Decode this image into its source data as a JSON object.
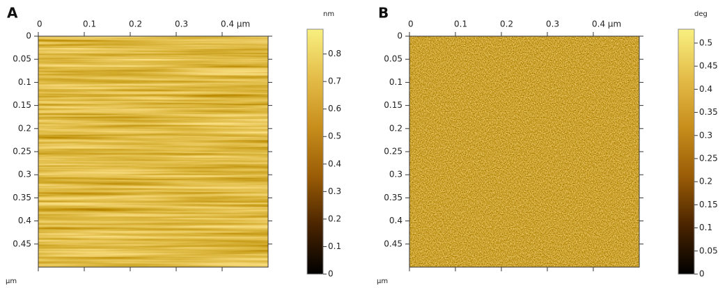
{
  "chart_data": [
    {
      "type": "heatmap",
      "panel_label": "A",
      "y_label": "μm",
      "xlim": [
        0,
        0.5
      ],
      "xticks": [
        0,
        0.1,
        0.2,
        0.3,
        {
          "value": 0.4,
          "label": "0.4 μm"
        }
      ],
      "ylim": [
        0,
        0.5
      ],
      "yticks": [
        0,
        0.05,
        0.1,
        0.15,
        0.2,
        0.25,
        0.3,
        0.35,
        0.4,
        0.45
      ],
      "colorbar": {
        "label": "nm",
        "lim": [
          0,
          0.89
        ],
        "ticks": [
          0,
          0.1,
          0.2,
          0.3,
          0.4,
          0.5,
          0.6,
          0.7,
          0.8
        ],
        "colors": [
          "#000000",
          "#4a2400",
          "#9a5c06",
          "#c88e1c",
          "#e4bc48",
          "#f8f080"
        ]
      }
    },
    {
      "type": "heatmap",
      "panel_label": "B",
      "y_label": "μm",
      "xlim": [
        0,
        0.5
      ],
      "xticks": [
        0,
        0.1,
        0.2,
        0.3,
        {
          "value": 0.4,
          "label": "0.4 μm"
        }
      ],
      "ylim": [
        0,
        0.5
      ],
      "yticks": [
        0,
        0.05,
        0.1,
        0.15,
        0.2,
        0.25,
        0.3,
        0.35,
        0.4,
        0.45
      ],
      "colorbar": {
        "label": "deg",
        "lim": [
          0,
          0.53
        ],
        "ticks": [
          0,
          0.05,
          0.1,
          0.15,
          0.2,
          0.25,
          0.3,
          0.35,
          0.4,
          0.45,
          0.5
        ],
        "colors": [
          "#000000",
          "#4a2400",
          "#9a5c06",
          "#c88e1c",
          "#e4bc48",
          "#f8f080"
        ]
      }
    }
  ]
}
